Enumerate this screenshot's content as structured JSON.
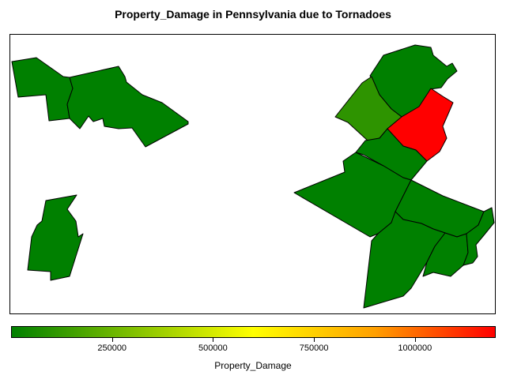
{
  "chart_data": {
    "type": "choropleth",
    "title": "Property_Damage in Pennsylvania due to Tornadoes",
    "color_scale": {
      "label": "Property_Damage",
      "min": 0,
      "max": 1200000,
      "ticks": [
        250000,
        500000,
        750000,
        1000000
      ],
      "tick_labels": [
        "250000",
        "500000",
        "750000",
        "1000000"
      ],
      "colors": [
        "#008000",
        "#90c800",
        "#ffff00",
        "#ffa000",
        "#ff0000"
      ]
    },
    "regions": [
      {
        "id": "northwest-a",
        "value": 0,
        "color": "#008000"
      },
      {
        "id": "northwest-b",
        "value": 0,
        "color": "#008000"
      },
      {
        "id": "southwest",
        "value": 0,
        "color": "#008000"
      },
      {
        "id": "northeast-top",
        "value": 0,
        "color": "#008000"
      },
      {
        "id": "northeast-mid",
        "value": 100000,
        "color": "#2e9400"
      },
      {
        "id": "northeast-red",
        "value": 1200000,
        "color": "#ff0000"
      },
      {
        "id": "east-center",
        "value": 0,
        "color": "#008000"
      },
      {
        "id": "central-east",
        "value": 0,
        "color": "#008000"
      },
      {
        "id": "southeast-a",
        "value": 0,
        "color": "#008000"
      },
      {
        "id": "southeast-b",
        "value": 0,
        "color": "#008000"
      },
      {
        "id": "southeast-c",
        "value": 0,
        "color": "#008000"
      },
      {
        "id": "southeast-d",
        "value": 0,
        "color": "#008000"
      }
    ]
  }
}
